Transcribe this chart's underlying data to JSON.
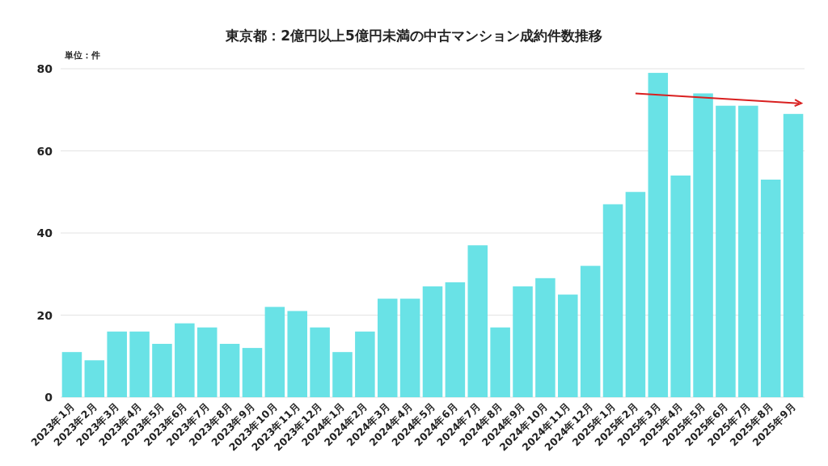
{
  "chart_data": {
    "type": "bar",
    "title": "東京都：2億円以上5億円未満の中古マンション成約件数推移",
    "ylabel": "単位：件",
    "categories": [
      "2023年1月",
      "2023年2月",
      "2023年3月",
      "2023年4月",
      "2023年5月",
      "2023年6月",
      "2023年7月",
      "2023年8月",
      "2023年9月",
      "2023年10月",
      "2023年11月",
      "2023年12月",
      "2024年1月",
      "2024年2月",
      "2024年3月",
      "2024年4月",
      "2024年5月",
      "2024年6月",
      "2024年7月",
      "2024年8月",
      "2024年9月",
      "2024年10月",
      "2024年11月",
      "2024年12月",
      "2025年1月",
      "2025年2月",
      "2025年3月",
      "2025年4月",
      "2025年5月",
      "2025年6月",
      "2025年7月",
      "2025年8月",
      "2025年9月"
    ],
    "values": [
      11,
      9,
      16,
      16,
      13,
      18,
      17,
      13,
      12,
      22,
      21,
      17,
      11,
      16,
      24,
      24,
      27,
      28,
      37,
      17,
      27,
      29,
      25,
      32,
      47,
      50,
      79,
      54,
      74,
      71,
      71,
      53,
      69
    ],
    "color": "#69e2e6",
    "ylim": [
      0,
      80
    ],
    "yticks": [
      0,
      20,
      40,
      60,
      80
    ],
    "grid": "y"
  }
}
